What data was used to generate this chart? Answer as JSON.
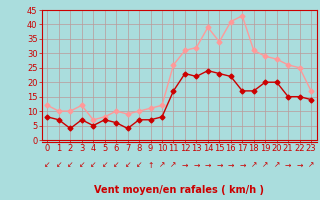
{
  "x": [
    0,
    1,
    2,
    3,
    4,
    5,
    6,
    7,
    8,
    9,
    10,
    11,
    12,
    13,
    14,
    15,
    16,
    17,
    18,
    19,
    20,
    21,
    22,
    23
  ],
  "wind_avg": [
    8,
    7,
    4,
    7,
    5,
    7,
    6,
    4,
    7,
    7,
    8,
    17,
    23,
    22,
    24,
    23,
    22,
    17,
    17,
    20,
    20,
    15,
    15,
    14
  ],
  "wind_gust": [
    12,
    10,
    10,
    12,
    7,
    8,
    10,
    9,
    10,
    11,
    12,
    26,
    31,
    32,
    39,
    34,
    41,
    43,
    31,
    29,
    28,
    26,
    25,
    17
  ],
  "avg_color": "#cc0000",
  "gust_color": "#ff9999",
  "bg_color": "#aadddd",
  "grid_color": "#bb9999",
  "xlabel": "Vent moyen/en rafales ( km/h )",
  "ylim": [
    0,
    45
  ],
  "yticks": [
    0,
    5,
    10,
    15,
    20,
    25,
    30,
    35,
    40,
    45
  ],
  "xticks": [
    0,
    1,
    2,
    3,
    4,
    5,
    6,
    7,
    8,
    9,
    10,
    11,
    12,
    13,
    14,
    15,
    16,
    17,
    18,
    19,
    20,
    21,
    22,
    23
  ],
  "xlabel_color": "#cc0000",
  "xlabel_fontsize": 7,
  "tick_fontsize": 6,
  "markersize": 2.5,
  "linewidth": 1.0,
  "arrows": [
    "↙",
    "↙",
    "↙",
    "↙",
    "↙",
    "↙",
    "↙",
    "↙",
    "↙",
    "↑",
    "↗",
    "↗",
    "→",
    "→",
    "→",
    "→",
    "→",
    "→",
    "↗",
    "↗",
    "↗",
    "→",
    "→",
    "↗"
  ]
}
